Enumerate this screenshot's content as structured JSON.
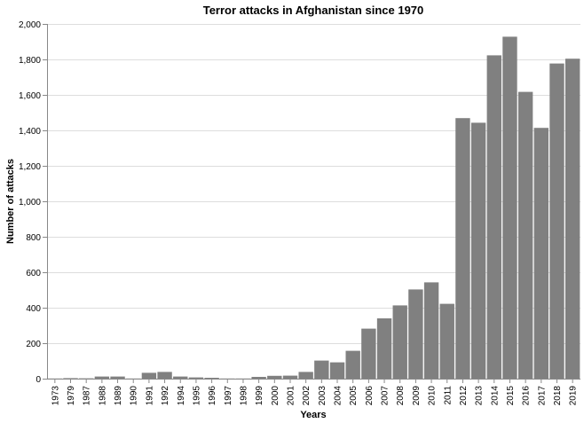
{
  "chart_data": {
    "type": "bar",
    "title": "Terror attacks in Afghanistan since 1970",
    "xlabel": "Years",
    "ylabel": "Number of attacks",
    "ylim": [
      0,
      2000
    ],
    "yticks": [
      "0",
      "200",
      "400",
      "600",
      "800",
      "1,000",
      "1,200",
      "1,400",
      "1,600",
      "1,800",
      "2,000"
    ],
    "ytick_values": [
      0,
      200,
      400,
      600,
      800,
      1000,
      1200,
      1400,
      1600,
      1800,
      2000
    ],
    "grid": true,
    "bar_color": "#808080",
    "categories": [
      "1973",
      "1979",
      "1987",
      "1988",
      "1989",
      "1990",
      "1991",
      "1992",
      "1994",
      "1995",
      "1996",
      "1997",
      "1998",
      "1999",
      "2000",
      "2001",
      "2002",
      "2003",
      "2004",
      "2005",
      "2006",
      "2007",
      "2008",
      "2009",
      "2010",
      "2011",
      "2012",
      "2013",
      "2014",
      "2015",
      "2016",
      "2017",
      "2018",
      "2019"
    ],
    "values": [
      1,
      3,
      2,
      12,
      12,
      1,
      33,
      38,
      12,
      7,
      5,
      1,
      1,
      10,
      16,
      17,
      38,
      102,
      92,
      157,
      282,
      340,
      413,
      503,
      543,
      422,
      1469,
      1443,
      1823,
      1928,
      1617,
      1414,
      1777,
      1804
    ]
  }
}
